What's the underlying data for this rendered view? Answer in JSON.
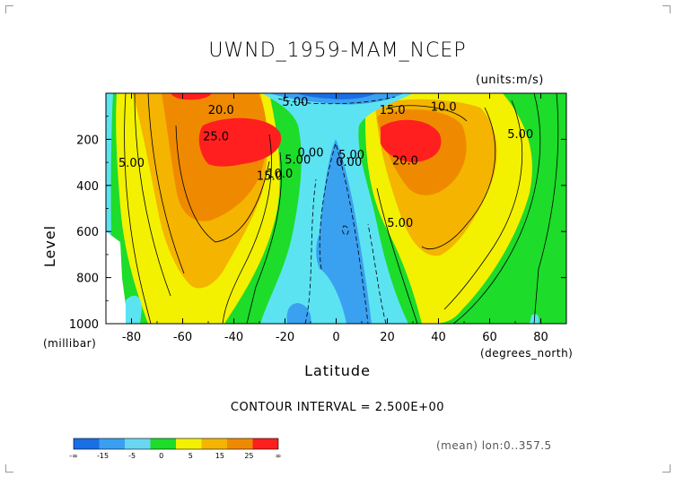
{
  "header": {
    "title": "UWND_1959-MAM_NCEP",
    "units": "(units:m/s)"
  },
  "footer": {
    "contour_interval": "CONTOUR INTERVAL = 2.500E+00",
    "mean_note": "(mean) lon:0..357.5"
  },
  "chart_data": {
    "type": "heatmap",
    "subtype": "filled-contour",
    "title": "UWND_1959-MAM_NCEP",
    "units": "(units:m/s)",
    "xlabel": "Latitude",
    "x_unit_label": "(degrees_north)",
    "ylabel": "Level",
    "y_unit_label": "(millibar)",
    "xlim": [
      -90,
      90
    ],
    "ylim": [
      1000,
      0
    ],
    "y_inverted": true,
    "x_ticks": [
      -80,
      -60,
      -40,
      -20,
      0,
      20,
      40,
      60,
      80
    ],
    "y_ticks": [
      200,
      400,
      600,
      800,
      1000
    ],
    "contour_interval": 2.5,
    "contour_labels": [
      {
        "text": "20.0",
        "lat": -45,
        "lev": 90
      },
      {
        "text": "25.0",
        "lat": -47,
        "lev": 205
      },
      {
        "text": "5.00",
        "lat": -80,
        "lev": 320
      },
      {
        "text": "15.0",
        "lat": -26,
        "lev": 375
      },
      {
        "text": "10.0",
        "lat": -22,
        "lev": 365
      },
      {
        "text": "5.00",
        "lat": -15,
        "lev": 305
      },
      {
        "text": "0.00",
        "lat": -10,
        "lev": 275
      },
      {
        "text": "5.00",
        "lat": -16,
        "lev": 55
      },
      {
        "text": "0.00",
        "lat": 5,
        "lev": 315
      },
      {
        "text": "5.00",
        "lat": 6,
        "lev": 285
      },
      {
        "text": "15.0",
        "lat": 22,
        "lev": 90
      },
      {
        "text": "10.0",
        "lat": 42,
        "lev": 75
      },
      {
        "text": "20.0",
        "lat": 27,
        "lev": 310
      },
      {
        "text": "5.00",
        "lat": 72,
        "lev": 195
      },
      {
        "text": "5.00",
        "lat": 25,
        "lev": 580
      }
    ],
    "color_scale": {
      "labels": [
        "-∞",
        "-15",
        "-5",
        "0",
        "5",
        "15",
        "25",
        "∞"
      ],
      "colors": [
        "#1a6ee6",
        "#3a9ff0",
        "#69d6f2",
        "#1ddc2a",
        "#f3f100",
        "#f4b400",
        "#ef8a00",
        "#ff1f1f"
      ]
    },
    "colors": {
      "c_neg_strong": "#1a6ee6",
      "c_neg": "#3aa0f0",
      "c_zero": "#5ce3f2",
      "c_low": "#1ddc2a",
      "c_mid": "#f3f100",
      "c_high1": "#f4b400",
      "c_high2": "#ef8a00",
      "c_max": "#ff1f1f"
    }
  }
}
